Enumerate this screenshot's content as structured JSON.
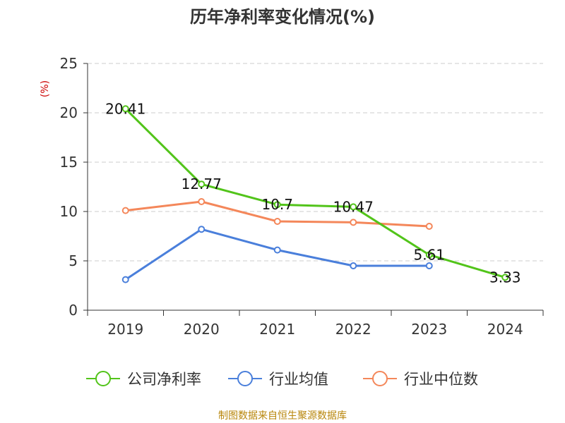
{
  "chart_data": {
    "type": "line",
    "title": "历年净利率变化情况(%)",
    "ylabel": "(%)",
    "xlabel": "",
    "categories": [
      "2019",
      "2020",
      "2021",
      "2022",
      "2023",
      "2024"
    ],
    "ylim": [
      0,
      25
    ],
    "yticks": [
      "0",
      "5",
      "10",
      "15",
      "20",
      "25"
    ],
    "grid": true,
    "legend_position": "bottom",
    "series": [
      {
        "name": "公司净利率",
        "color": "#52c41a",
        "values": [
          20.41,
          12.77,
          10.7,
          10.47,
          5.61,
          3.33
        ],
        "labels": [
          "20.41",
          "12.77",
          "10.7",
          "10.47",
          "5.61",
          "3.33"
        ]
      },
      {
        "name": "行业均值",
        "color": "#4a7fdb",
        "values": [
          3.1,
          8.2,
          6.1,
          4.5,
          4.5,
          null
        ]
      },
      {
        "name": "行业中位数",
        "color": "#f4875a",
        "values": [
          10.1,
          11.0,
          9.0,
          8.9,
          8.5,
          null
        ]
      }
    ]
  },
  "footer": {
    "source": "制图数据来自恒生聚源数据库"
  }
}
